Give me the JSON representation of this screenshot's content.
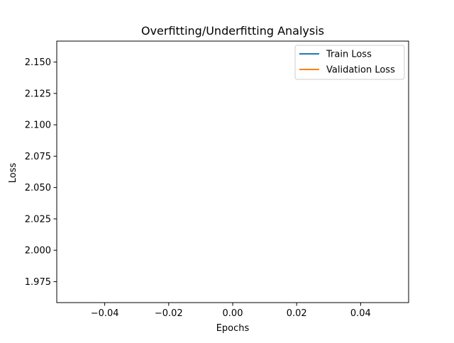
{
  "chart_data": {
    "type": "line",
    "title": "Overfitting/Underfitting Analysis",
    "xlabel": "Epochs",
    "ylabel": "Loss",
    "xlim": [
      -0.055,
      0.055
    ],
    "ylim": [
      1.9583,
      2.1667
    ],
    "x_ticks": [
      -0.04,
      -0.02,
      0.0,
      0.02,
      0.04
    ],
    "x_tick_labels": [
      "−0.04",
      "−0.02",
      "0.00",
      "0.02",
      "0.04"
    ],
    "y_ticks": [
      1.975,
      2.0,
      2.025,
      2.05,
      2.075,
      2.1,
      2.125,
      2.15
    ],
    "y_tick_labels": [
      "1.975",
      "2.000",
      "2.025",
      "2.050",
      "2.075",
      "2.100",
      "2.125",
      "2.150"
    ],
    "grid": false,
    "legend_position": "upper-right",
    "series": [
      {
        "name": "Train Loss",
        "color": "#1f77b4",
        "x": [],
        "y": []
      },
      {
        "name": "Validation Loss",
        "color": "#ff7f0e",
        "x": [],
        "y": []
      }
    ]
  }
}
